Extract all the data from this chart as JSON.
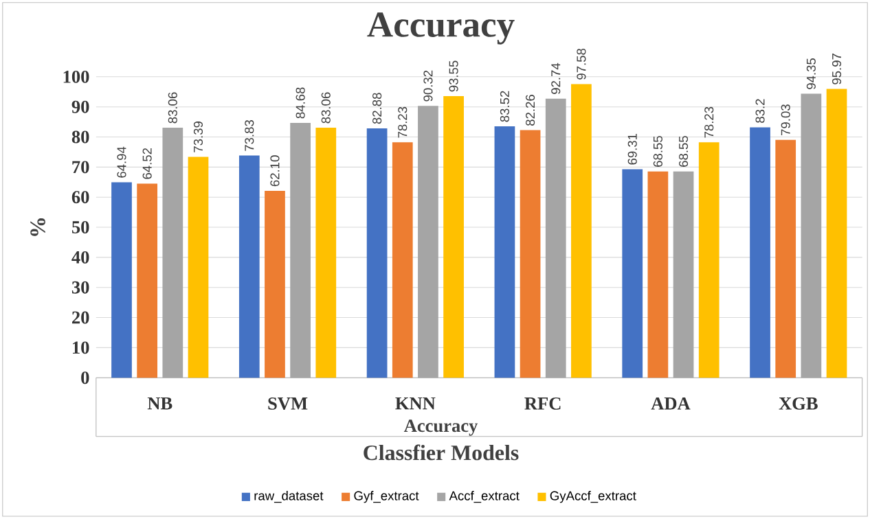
{
  "chart_data": {
    "type": "bar",
    "title": "Accuracy",
    "ylabel": "%",
    "xlabel": "Classfier Models",
    "categories": [
      "NB",
      "SVM",
      "KNN",
      "RFC",
      "ADA",
      "XGB"
    ],
    "series": [
      {
        "name": "raw_dataset",
        "color": "#4472c4",
        "values": [
          64.94,
          73.83,
          82.88,
          83.52,
          69.31,
          83.2
        ],
        "value_labels": [
          "64.94",
          "73.83",
          "82.88",
          "83.52",
          "69.31",
          "83.2"
        ]
      },
      {
        "name": "Gyf_extract",
        "color": "#ed7d31",
        "values": [
          64.52,
          62.1,
          78.23,
          82.26,
          68.55,
          79.03
        ],
        "value_labels": [
          "64.52",
          "62.10",
          "78.23",
          "82.26",
          "68.55",
          "79.03"
        ]
      },
      {
        "name": "Accf_extract",
        "color": "#a5a5a5",
        "values": [
          83.06,
          84.68,
          90.32,
          92.74,
          68.55,
          94.35
        ],
        "value_labels": [
          "83.06",
          "84.68",
          "90.32",
          "92.74",
          "68.55",
          "94.35"
        ]
      },
      {
        "name": "GyAccf_extract",
        "color": "#ffc000",
        "values": [
          73.39,
          83.06,
          93.55,
          97.58,
          78.23,
          95.97
        ],
        "value_labels": [
          "73.39",
          "83.06",
          "93.55",
          "97.58",
          "78.23",
          "95.97"
        ]
      }
    ],
    "annotations": [
      "Accuracy"
    ],
    "ylim": [
      0,
      100
    ],
    "yticks": [
      0,
      10,
      20,
      30,
      40,
      50,
      60,
      70,
      80,
      90,
      100
    ],
    "grid": "y",
    "legend": "bottom"
  }
}
